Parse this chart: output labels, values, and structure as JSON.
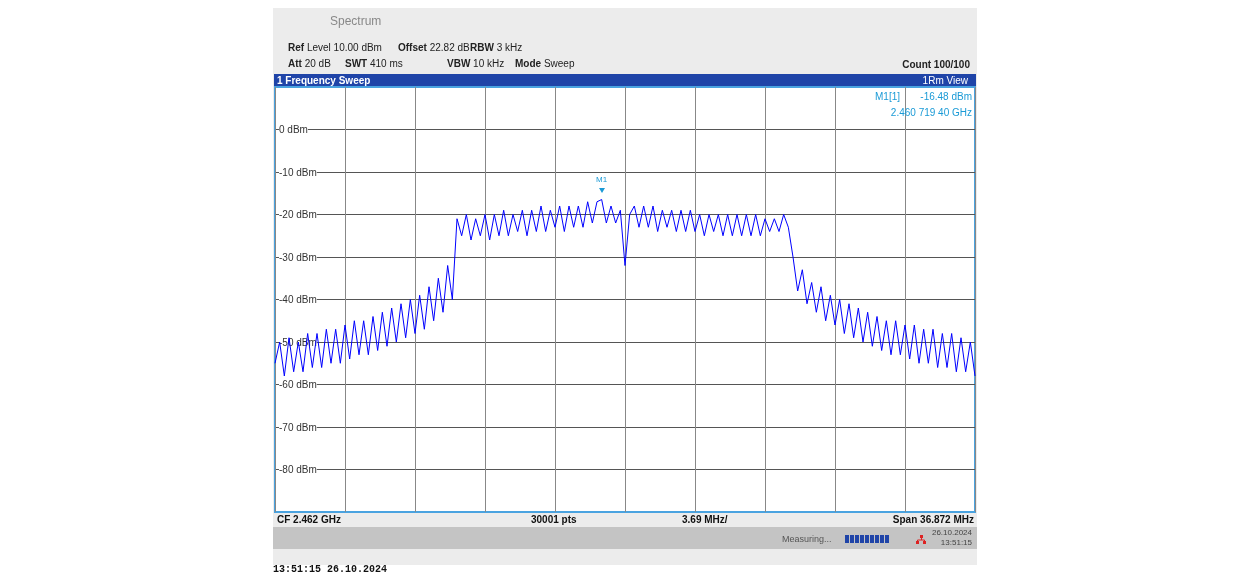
{
  "chart_data": {
    "type": "line",
    "title": "1 Frequency Sweep",
    "categories": [
      null,
      null,
      null,
      null,
      null,
      null,
      null,
      null,
      null,
      null,
      null,
      null,
      null,
      null,
      null,
      null,
      null,
      null,
      null,
      null,
      null,
      null,
      null,
      null,
      null,
      null,
      null,
      null,
      null,
      null,
      null,
      null,
      null,
      null,
      null,
      null,
      null,
      null,
      null,
      null,
      null,
      null,
      null,
      null,
      null,
      null,
      null,
      null,
      null,
      null,
      null,
      null,
      null,
      null,
      null,
      null,
      null,
      null,
      null,
      null,
      null,
      null,
      null,
      null,
      null,
      null,
      null,
      null,
      null,
      null,
      null,
      null,
      null,
      null,
      null,
      null,
      null,
      null,
      null,
      null,
      null,
      null,
      null,
      null,
      null,
      null,
      null,
      null,
      null,
      null,
      null,
      null,
      null,
      null,
      null,
      null,
      null,
      null,
      null,
      null,
      null,
      null,
      null,
      null,
      null,
      null,
      null,
      null,
      null,
      null,
      null,
      null,
      null,
      null,
      null,
      null,
      null,
      null,
      null,
      null,
      null,
      null,
      null,
      null,
      null,
      null,
      null,
      null,
      null,
      null,
      null,
      null,
      null,
      null,
      null,
      null,
      null,
      null,
      null,
      null,
      null,
      null,
      null,
      null,
      null,
      null,
      null,
      null,
      null,
      null,
      null
    ],
    "series": [
      {
        "color": "#0000ff",
        "values": [
          -55,
          -50,
          -58,
          -49,
          -57,
          -50,
          -57,
          -48,
          -56,
          -48,
          -56,
          -47,
          -55,
          -47,
          -55,
          -46,
          -54,
          -45,
          -53,
          -45,
          -53,
          -44,
          -52,
          -43,
          -51,
          -42,
          -50,
          -41,
          -49,
          -40,
          -48,
          -39,
          -47,
          -37,
          -45,
          -35,
          -43,
          -32,
          -40,
          -21,
          -25,
          -20,
          -26,
          -21,
          -25,
          -20,
          -26,
          -20,
          -25,
          -19,
          -25,
          -20,
          -24,
          -19,
          -25,
          -19,
          -24,
          -18,
          -24,
          -19,
          -23,
          -18,
          -24,
          -18,
          -23,
          -18,
          -23,
          -17,
          -22,
          -17,
          -16.48,
          -22,
          -18,
          -22,
          -19,
          -32,
          -20,
          -18,
          -23,
          -18,
          -23,
          -18,
          -24,
          -19,
          -23,
          -19,
          -24,
          -19,
          -24,
          -19,
          -24,
          -20,
          -25,
          -20,
          -24,
          -20,
          -25,
          -20,
          -25,
          -20,
          -25,
          -20,
          -25,
          -20,
          -25,
          -21,
          -24,
          -21,
          -24,
          -20,
          -23,
          -30,
          -38,
          -33,
          -41,
          -36,
          -43,
          -37,
          -45,
          -39,
          -46,
          -40,
          -48,
          -41,
          -49,
          -42,
          -50,
          -43,
          -51,
          -44,
          -52,
          -45,
          -53,
          -45,
          -53,
          -46,
          -54,
          -46,
          -55,
          -47,
          -55,
          -47,
          -56,
          -48,
          -56,
          -48,
          -57,
          -49,
          -57,
          -50,
          -58
        ]
      }
    ],
    "ylim": [
      -90,
      10
    ],
    "yticks": [
      {
        "value": -80,
        "label": "-80 dBm"
      },
      {
        "value": -70,
        "label": "-70 dBm"
      },
      {
        "value": -60,
        "label": "-60 dBm"
      },
      {
        "value": -50,
        "label": "-50 dBm"
      },
      {
        "value": -40,
        "label": "-40 dBm"
      },
      {
        "value": -30,
        "label": "-30 dBm"
      },
      {
        "value": -20,
        "label": "-20 dBm"
      },
      {
        "value": -10,
        "label": "-10 dBm"
      },
      {
        "value": 0,
        "label": "0 dBm"
      }
    ],
    "grid": true,
    "marker": "none",
    "line_style": "solid",
    "tick_labels": "y",
    "annotations": [
      "Spectrum",
      "Ref Level 10.00 dBm",
      "Offset 22.82 dB",
      "RBW 3 kHz",
      "Att 20 dB",
      "SWT 410 ms",
      "VBW 10 kHz",
      "Mode Sweep",
      "Count 100/100",
      "1Rm View",
      "M1[1]",
      "-16.48 dBm",
      "2.460 719 40 GHz",
      "CF 2.462 GHz",
      "30001 pts",
      "3.69 MHz/",
      "Span 36.872 MHz",
      "Measuring...",
      "26.10.2024",
      "13:51:15",
      "13:51:15  26.10.2024",
      {
        "text": "M1",
        "y": -16.48
      }
    ]
  }
}
